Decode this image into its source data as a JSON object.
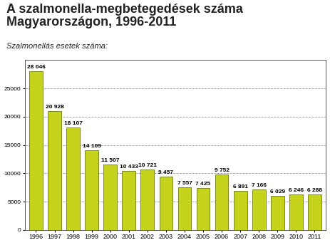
{
  "chart_data": {
    "type": "bar",
    "title": "A szalmonella-megbetegedések száma\nMagyarországon, 1996-2011",
    "subtitle": "Szalmonellás esetek száma:",
    "categories": [
      "1996",
      "1997",
      "1998",
      "1999",
      "2000",
      "2001",
      "2002",
      "2003",
      "2004",
      "2005",
      "2006",
      "2007",
      "2008",
      "2009",
      "2010",
      "2011"
    ],
    "values": [
      28046,
      20928,
      18107,
      14109,
      11507,
      10433,
      10721,
      9457,
      7557,
      7425,
      9752,
      6891,
      7166,
      6029,
      6246,
      6288
    ],
    "value_labels": [
      "28 046",
      "20 928",
      "18 107",
      "14 109",
      "11 507",
      "10 433",
      "10 721",
      "9 457",
      "7 557",
      "7 425",
      "9 752",
      "6 891",
      "7 166",
      "6 029",
      "6 246",
      "6 288"
    ],
    "data_labels": true,
    "color": "#c5d31c",
    "ylim": [
      0,
      30000
    ],
    "yticks": [
      0,
      5000,
      10000,
      15000,
      20000,
      25000
    ],
    "grid": true
  }
}
